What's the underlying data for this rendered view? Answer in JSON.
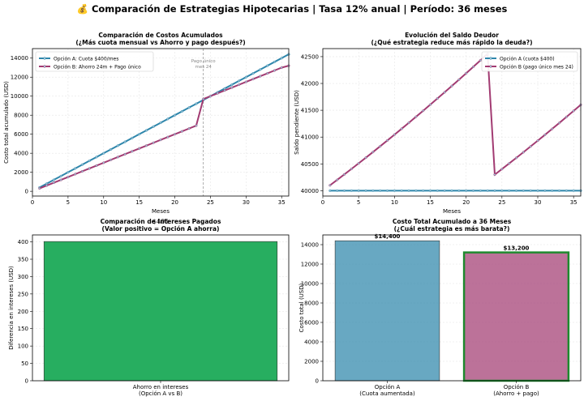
{
  "figure": {
    "suptitle": "💰 Comparación de Estrategias Hipotecarias | Tasa 12% anual | Período: 36 meses"
  },
  "chart_data": [
    {
      "type": "line",
      "title": "Comparación de Costos Acumulados\n(¿Más cuota mensual vs Ahorro y pago después?)",
      "xlabel": "Meses",
      "ylabel": "Costo total acumulado (USD)",
      "xlim": [
        0,
        36
      ],
      "ylim": [
        -500,
        15000
      ],
      "xticks": [
        0,
        5,
        10,
        15,
        20,
        25,
        30,
        35
      ],
      "yticks": [
        0,
        2000,
        4000,
        6000,
        8000,
        10000,
        12000,
        14000
      ],
      "grid": true,
      "legend": "top-left",
      "annotation": {
        "text": "Pago único\nmes 24",
        "x": 24
      },
      "series": [
        {
          "name": "Opción A: Cuota $400/mes",
          "color": "#2e86ab",
          "x": [
            1,
            2,
            3,
            4,
            5,
            6,
            7,
            8,
            9,
            10,
            11,
            12,
            13,
            14,
            15,
            16,
            17,
            18,
            19,
            20,
            21,
            22,
            23,
            24,
            25,
            26,
            27,
            28,
            29,
            30,
            31,
            32,
            33,
            34,
            35,
            36
          ],
          "y": [
            400,
            800,
            1200,
            1600,
            2000,
            2400,
            2800,
            3200,
            3600,
            4000,
            4400,
            4800,
            5200,
            5600,
            6000,
            6400,
            6800,
            7200,
            7600,
            8000,
            8400,
            8800,
            9200,
            9600,
            10000,
            10400,
            10800,
            11200,
            11600,
            12000,
            12400,
            12800,
            13200,
            13600,
            14000,
            14400
          ]
        },
        {
          "name": "Opción B: Ahorro 24m + Pago único",
          "color": "#a23b72",
          "x": [
            1,
            2,
            3,
            4,
            5,
            6,
            7,
            8,
            9,
            10,
            11,
            12,
            13,
            14,
            15,
            16,
            17,
            18,
            19,
            20,
            21,
            22,
            23,
            24,
            25,
            26,
            27,
            28,
            29,
            30,
            31,
            32,
            33,
            34,
            35,
            36
          ],
          "y": [
            300,
            600,
            900,
            1200,
            1500,
            1800,
            2100,
            2400,
            2700,
            3000,
            3300,
            3600,
            3900,
            4200,
            4500,
            4800,
            5100,
            5400,
            5700,
            6000,
            6300,
            6600,
            6900,
            9700,
            10000,
            10300,
            10600,
            10900,
            11200,
            11500,
            11800,
            12100,
            12400,
            12700,
            13000,
            13200
          ]
        }
      ]
    },
    {
      "type": "line",
      "title": "Evolución del Saldo Deudor\n(¿Qué estrategia reduce más rápido la deuda?)",
      "xlabel": "Meses",
      "ylabel": "Saldo pendiente (USD)",
      "xlim": [
        0,
        36
      ],
      "ylim": [
        39900,
        42650
      ],
      "xticks": [
        0,
        5,
        10,
        15,
        20,
        25,
        30,
        35
      ],
      "yticks": [
        40000,
        40500,
        41000,
        41500,
        42000,
        42500
      ],
      "grid": true,
      "legend": "top-right",
      "series": [
        {
          "name": "Opción A (cuota $400)",
          "color": "#2e86ab",
          "x": [
            1,
            2,
            3,
            4,
            5,
            6,
            7,
            8,
            9,
            10,
            11,
            12,
            13,
            14,
            15,
            16,
            17,
            18,
            19,
            20,
            21,
            22,
            23,
            24,
            25,
            26,
            27,
            28,
            29,
            30,
            31,
            32,
            33,
            34,
            35,
            36
          ],
          "y": [
            40000,
            40000,
            40000,
            40000,
            40000,
            40000,
            40000,
            40000,
            40000,
            40000,
            40000,
            40000,
            40000,
            40000,
            40000,
            40000,
            40000,
            40000,
            40000,
            40000,
            40000,
            40000,
            40000,
            40000,
            40000,
            40000,
            40000,
            40000,
            40000,
            40000,
            40000,
            40000,
            40000,
            40000,
            40000,
            40000
          ]
        },
        {
          "name": "Opción B (pago único mes 24)",
          "color": "#a23b72",
          "x": [
            1,
            2,
            3,
            4,
            5,
            6,
            7,
            8,
            9,
            10,
            11,
            12,
            13,
            14,
            15,
            16,
            17,
            18,
            19,
            20,
            21,
            22,
            23,
            24,
            25,
            26,
            27,
            28,
            29,
            30,
            31,
            32,
            33,
            34,
            35,
            36
          ],
          "y": [
            40100,
            40201,
            40303,
            40406,
            40510,
            40615,
            40721,
            40828,
            40936,
            41045,
            41155,
            41266,
            41378,
            41491,
            41605,
            41720,
            41836,
            41953,
            42071,
            42190,
            42310,
            42431,
            42553,
            40300,
            40403,
            40507,
            40612,
            40718,
            40825,
            40933,
            41042,
            41152,
            41263,
            41375,
            41488,
            41602
          ]
        }
      ]
    },
    {
      "type": "bar",
      "title": "Comparación de Intereses Pagados\n(Valor positivo = Opción A ahorra)",
      "overlay_label": "$401",
      "ylabel": "Diferencia en intereses (USD)",
      "categories": [
        "Ahorro en intereses\n(Opción A vs B)"
      ],
      "values": [
        401
      ],
      "colors": [
        "#27ae60"
      ],
      "ylim": [
        0,
        420
      ],
      "yticks": [
        0,
        50,
        100,
        150,
        200,
        250,
        300,
        350,
        400
      ],
      "grid": true
    },
    {
      "type": "bar",
      "title": "Costo Total Acumulado a 36 Meses\n(¿Cuál estrategia es más barata?)",
      "ylabel": "Costo total (USD)",
      "categories": [
        "Opción A\n(Cuota aumentada)",
        "Opción B\n(Ahorro + pago)"
      ],
      "values": [
        14400,
        13200
      ],
      "value_labels": [
        "$14,400",
        "$13,200"
      ],
      "colors": [
        "#2e86ab",
        "#a23b72"
      ],
      "highlight_edge": "#1e8a2e",
      "ylim": [
        0,
        15000
      ],
      "yticks": [
        0,
        2000,
        4000,
        6000,
        8000,
        10000,
        12000,
        14000
      ],
      "grid": true
    }
  ]
}
